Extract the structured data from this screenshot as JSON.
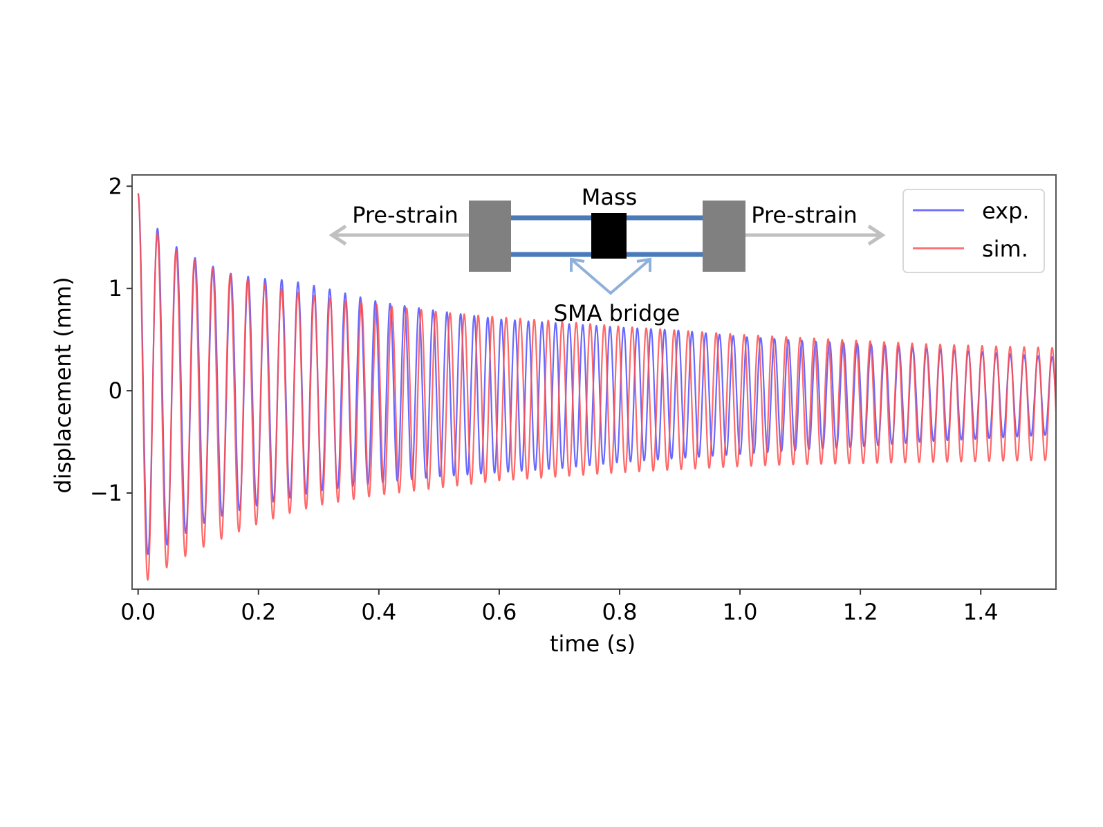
{
  "chart_data": {
    "type": "line",
    "title": "",
    "xlabel": "time (s)",
    "ylabel": "displacement (mm)",
    "xlim": [
      -0.01,
      1.525
    ],
    "ylim": [
      -1.94,
      2.11
    ],
    "x_ticks": [
      0.0,
      0.2,
      0.4,
      0.6,
      0.8,
      1.0,
      1.2,
      1.4
    ],
    "x_tick_labels": [
      "0.0",
      "0.2",
      "0.4",
      "0.6",
      "0.8",
      "1.0",
      "1.2",
      "1.4"
    ],
    "y_ticks": [
      -1,
      0,
      1,
      2
    ],
    "y_tick_labels": [
      "−1",
      "0",
      "1",
      "2"
    ],
    "grid": false,
    "legend": {
      "placement": "top-right",
      "entries": [
        "exp.",
        "sim."
      ]
    },
    "series": [
      {
        "name": "exp.",
        "color": "#4d4dff",
        "start_value": 1.93,
        "envelope": {
          "t": [
            0.0,
            0.02,
            0.03,
            0.06,
            0.1,
            0.15,
            0.2,
            0.25,
            0.3,
            0.4,
            0.5,
            0.6,
            0.7,
            0.8,
            0.9,
            1.0,
            1.1,
            1.2,
            1.3,
            1.4,
            1.52
          ],
          "upper": [
            1.93,
            1.75,
            1.6,
            1.42,
            1.28,
            1.15,
            1.1,
            1.08,
            1.02,
            0.87,
            0.78,
            0.7,
            0.66,
            0.62,
            0.59,
            0.53,
            0.49,
            0.46,
            0.42,
            0.38,
            0.33
          ],
          "lower": [
            -1.6,
            -1.6,
            -1.58,
            -1.46,
            -1.32,
            -1.2,
            -1.12,
            -1.05,
            -0.98,
            -0.9,
            -0.84,
            -0.8,
            -0.76,
            -0.7,
            -0.66,
            -0.62,
            -0.58,
            -0.55,
            -0.5,
            -0.47,
            -0.43
          ]
        },
        "frequency_start_hz": 30.5,
        "frequency_end_hz": 44.5,
        "frequency_knee_s": 0.55,
        "frequency_tail_hz": 43.0,
        "phase_lag_rad": 0.0
      },
      {
        "name": "sim.",
        "color": "#ff4d4d",
        "start_value": 1.93,
        "envelope": {
          "t": [
            0.0,
            0.02,
            0.03,
            0.06,
            0.1,
            0.15,
            0.2,
            0.25,
            0.3,
            0.4,
            0.5,
            0.6,
            0.7,
            0.8,
            0.9,
            1.0,
            1.1,
            1.2,
            1.3,
            1.4,
            1.52
          ],
          "upper": [
            1.93,
            1.7,
            1.55,
            1.38,
            1.26,
            1.14,
            1.05,
            0.98,
            0.92,
            0.84,
            0.77,
            0.72,
            0.68,
            0.63,
            0.59,
            0.55,
            0.52,
            0.49,
            0.46,
            0.44,
            0.42
          ],
          "lower": [
            -1.85,
            -1.85,
            -1.8,
            -1.68,
            -1.55,
            -1.42,
            -1.3,
            -1.2,
            -1.12,
            -1.02,
            -0.95,
            -0.88,
            -0.84,
            -0.8,
            -0.77,
            -0.74,
            -0.72,
            -0.71,
            -0.7,
            -0.69,
            -0.68
          ]
        },
        "frequency_start_hz": 31.0,
        "frequency_end_hz": 43.0,
        "frequency_knee_s": 0.55,
        "frequency_tail_hz": 43.0,
        "phase_lag_rad": 0.0
      }
    ]
  },
  "inset": {
    "mass_label": "Mass",
    "left_label": "Pre-strain",
    "right_label": "Pre-strain",
    "bridge_label": "SMA bridge",
    "clamp_color": "#808080",
    "rod_color": "#4a7ab8",
    "mass_color": "#000000",
    "arrow_color": "#c0c0c0",
    "bridge_arrow_color": "#8fb0d8"
  }
}
